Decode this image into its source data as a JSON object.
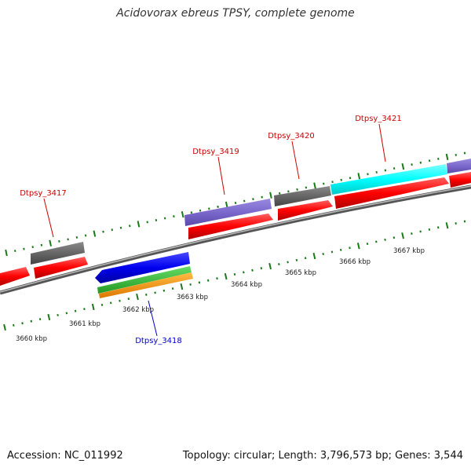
{
  "title": "Acidovorax ebreus TPSY, complete genome",
  "accession": "Accession: NC_011992",
  "stats": "Topology: circular; Length: 3,796,573 bp; Genes: 3,544",
  "scale_labels": [
    "3660 kbp",
    "3661 kbp",
    "3662 kbp",
    "3663 kbp",
    "3664 kbp",
    "3665 kbp",
    "3666 kbp",
    "3667 kbp"
  ],
  "gene_labels": {
    "dtpsy_3417": "Dtpsy_3417",
    "dtpsy_3418": "Dtpsy_3418",
    "dtpsy_3419": "Dtpsy_3419",
    "dtpsy_3420": "Dtpsy_3420",
    "dtpsy_3421": "Dtpsy_3421"
  },
  "colors": {
    "forward_label": "#cc0000",
    "reverse_label": "#0000cc",
    "cds_red": "#ff0000",
    "gray": "#666666",
    "purple": "#7b68cc",
    "cyan": "#00ffff",
    "blue": "#0000ee",
    "green": "#33cc33",
    "orange": "#ff9900",
    "tick": "#1a7a1a"
  }
}
